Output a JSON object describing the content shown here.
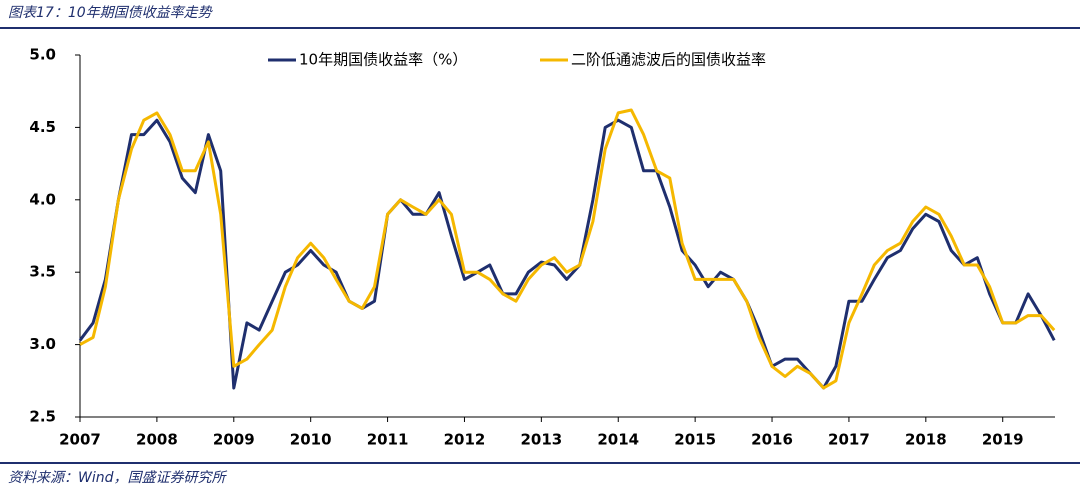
{
  "header": {
    "title": "图表17：10年期国债收益率走势"
  },
  "source": "资料来源：Wind，国盛证券研究所",
  "chart_data": {
    "type": "line",
    "x": [
      2007,
      2007.17,
      2007.33,
      2007.5,
      2007.67,
      2007.83,
      2008,
      2008.17,
      2008.33,
      2008.5,
      2008.67,
      2008.83,
      2009,
      2009.17,
      2009.33,
      2009.5,
      2009.67,
      2009.83,
      2010,
      2010.17,
      2010.33,
      2010.5,
      2010.67,
      2010.83,
      2011,
      2011.17,
      2011.33,
      2011.5,
      2011.67,
      2011.83,
      2012,
      2012.17,
      2012.33,
      2012.5,
      2012.67,
      2012.83,
      2013,
      2013.17,
      2013.33,
      2013.5,
      2013.67,
      2013.83,
      2014,
      2014.17,
      2014.33,
      2014.5,
      2014.67,
      2014.83,
      2015,
      2015.17,
      2015.33,
      2015.5,
      2015.67,
      2015.83,
      2016,
      2016.17,
      2016.33,
      2016.5,
      2016.67,
      2016.83,
      2017,
      2017.17,
      2017.33,
      2017.5,
      2017.67,
      2017.83,
      2018,
      2018.17,
      2018.33,
      2018.5,
      2018.67,
      2018.83,
      2019,
      2019.17,
      2019.33,
      2019.5,
      2019.67
    ],
    "series": [
      {
        "name": "10年期国债收益率（%）",
        "color": "#1f2f6e",
        "values": [
          3.03,
          3.15,
          3.45,
          4.0,
          4.45,
          4.45,
          4.55,
          4.4,
          4.15,
          4.05,
          4.45,
          4.2,
          2.7,
          3.15,
          3.1,
          3.3,
          3.5,
          3.55,
          3.65,
          3.55,
          3.5,
          3.3,
          3.25,
          3.3,
          3.9,
          4.0,
          3.9,
          3.9,
          4.05,
          3.75,
          3.45,
          3.5,
          3.55,
          3.35,
          3.35,
          3.5,
          3.57,
          3.55,
          3.45,
          3.55,
          4.0,
          4.5,
          4.55,
          4.5,
          4.2,
          4.2,
          3.95,
          3.65,
          3.55,
          3.4,
          3.5,
          3.45,
          3.3,
          3.1,
          2.85,
          2.9,
          2.9,
          2.8,
          2.7,
          2.85,
          3.3,
          3.3,
          3.45,
          3.6,
          3.65,
          3.8,
          3.9,
          3.85,
          3.65,
          3.55,
          3.6,
          3.35,
          3.15,
          3.15,
          3.35,
          3.2,
          3.03
        ]
      },
      {
        "name": "二阶低通滤波后的国债收益率",
        "color": "#f5b800",
        "values": [
          3.0,
          3.05,
          3.4,
          4.0,
          4.35,
          4.55,
          4.6,
          4.45,
          4.2,
          4.2,
          4.4,
          3.9,
          2.85,
          2.9,
          3.0,
          3.1,
          3.4,
          3.6,
          3.7,
          3.6,
          3.45,
          3.3,
          3.25,
          3.4,
          3.9,
          4.0,
          3.95,
          3.9,
          4.0,
          3.9,
          3.5,
          3.5,
          3.45,
          3.35,
          3.3,
          3.45,
          3.55,
          3.6,
          3.5,
          3.55,
          3.85,
          4.35,
          4.6,
          4.62,
          4.45,
          4.2,
          4.15,
          3.7,
          3.45,
          3.45,
          3.45,
          3.45,
          3.3,
          3.05,
          2.85,
          2.78,
          2.85,
          2.8,
          2.7,
          2.75,
          3.15,
          3.35,
          3.55,
          3.65,
          3.7,
          3.85,
          3.95,
          3.9,
          3.75,
          3.55,
          3.55,
          3.4,
          3.15,
          3.15,
          3.2,
          3.2,
          3.1
        ]
      }
    ],
    "xlim": [
      2007,
      2019.68
    ],
    "xticks": [
      2007,
      2008,
      2009,
      2010,
      2011,
      2012,
      2013,
      2014,
      2015,
      2016,
      2017,
      2018,
      2019
    ],
    "ylim": [
      2.5,
      5.0
    ],
    "yticks": [
      2.5,
      {
        "value": 3,
        "label": "3.0"
      },
      3.5,
      {
        "value": 4,
        "label": "4.0"
      },
      4.5,
      {
        "value": 5,
        "label": "5.0"
      }
    ],
    "grid": false,
    "legend": "top"
  }
}
